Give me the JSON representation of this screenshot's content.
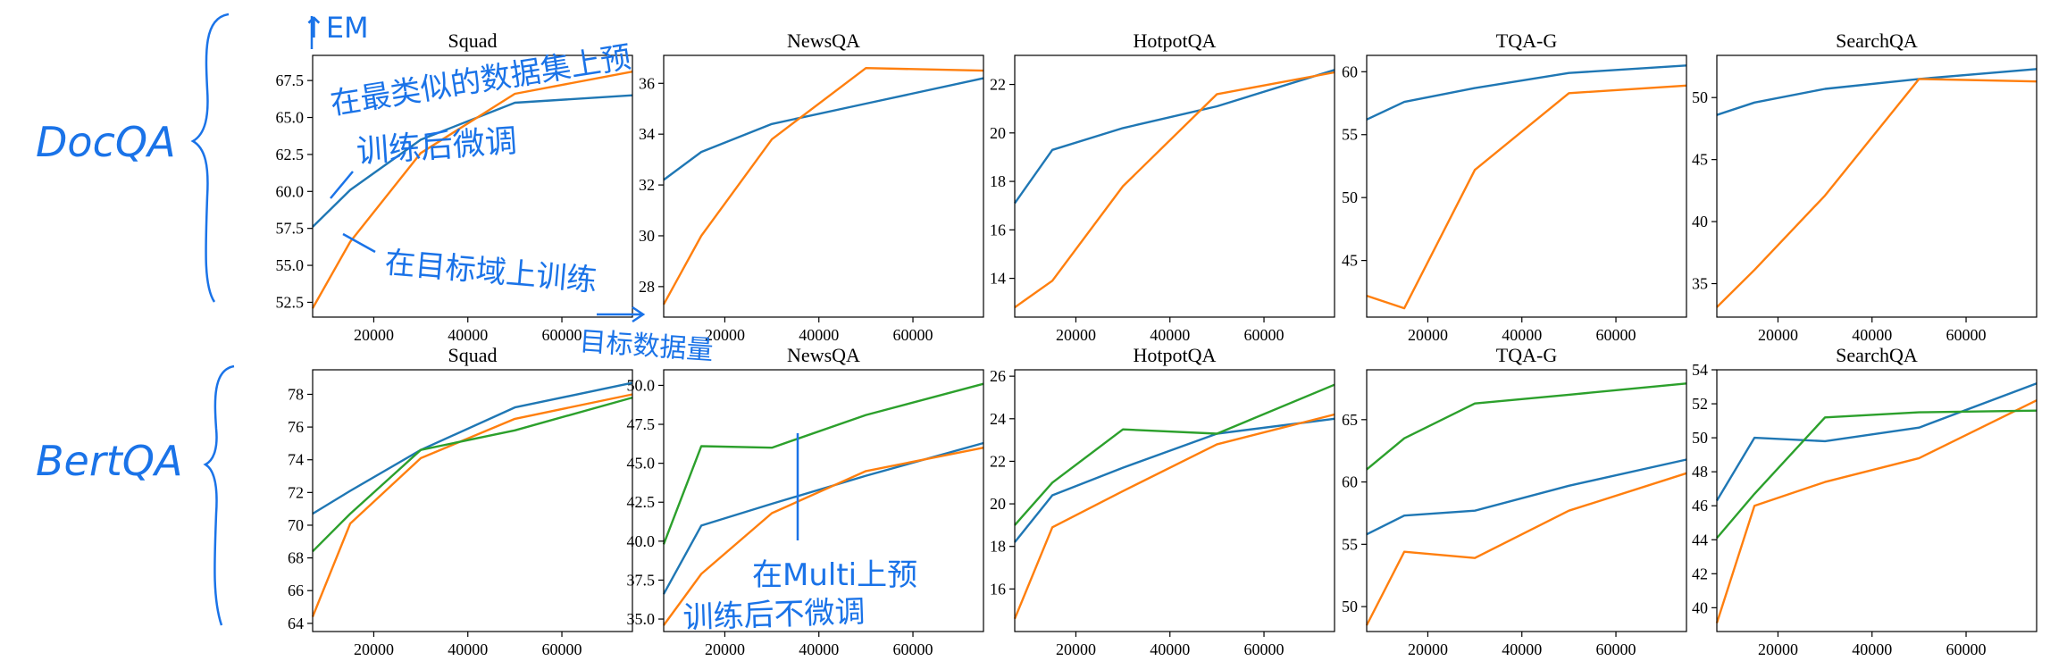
{
  "palette": {
    "blue": "#1f77b4",
    "orange": "#ff7f0e",
    "green": "#2ca02c",
    "ink": "#1a73e8"
  },
  "annotations": {
    "row1_label": "DocQA",
    "row2_label": "BertQA",
    "em_label": "↑EM",
    "pretrain_note_1": "在最类似的数据集上预",
    "pretrain_note_2": "训练后微调",
    "target_note": "在目标域上训练",
    "target_data_note": "目标数据量",
    "multi_note_1": "在Multi上预",
    "multi_note_2": "训练后不微调"
  },
  "chart_data": [
    {
      "type": "line",
      "title": "Squad",
      "xlim": [
        7000,
        75000
      ],
      "ylim": [
        51.5,
        69.2
      ],
      "xticks": [
        20000,
        40000,
        60000
      ],
      "yticks": [
        52.5,
        55.0,
        57.5,
        60.0,
        62.5,
        65.0,
        67.5
      ],
      "series": [
        {
          "color": "blue",
          "x": [
            7000,
            15000,
            30000,
            50000,
            75000
          ],
          "y": [
            57.6,
            60.1,
            63.5,
            66.0,
            66.5
          ]
        },
        {
          "color": "orange",
          "x": [
            7000,
            15000,
            30000,
            50000,
            75000
          ],
          "y": [
            52.1,
            56.6,
            62.6,
            66.6,
            68.1
          ]
        }
      ]
    },
    {
      "type": "line",
      "title": "NewsQA",
      "xlim": [
        7000,
        75000
      ],
      "ylim": [
        26.8,
        37.1
      ],
      "xticks": [
        20000,
        40000,
        60000
      ],
      "yticks": [
        28,
        30,
        32,
        34,
        36
      ],
      "series": [
        {
          "color": "blue",
          "x": [
            7000,
            15000,
            30000,
            50000,
            75000
          ],
          "y": [
            32.2,
            33.3,
            34.4,
            35.2,
            36.2
          ]
        },
        {
          "color": "orange",
          "x": [
            7000,
            15000,
            30000,
            50000,
            75000
          ],
          "y": [
            27.3,
            30.0,
            33.8,
            36.6,
            36.5
          ]
        }
      ]
    },
    {
      "type": "line",
      "title": "HotpotQA",
      "xlim": [
        7000,
        75000
      ],
      "ylim": [
        12.4,
        23.2
      ],
      "xticks": [
        20000,
        40000,
        60000
      ],
      "yticks": [
        14,
        16,
        18,
        20,
        22
      ],
      "series": [
        {
          "color": "blue",
          "x": [
            7000,
            15000,
            30000,
            50000,
            75000
          ],
          "y": [
            17.1,
            19.3,
            20.2,
            21.1,
            22.6
          ]
        },
        {
          "color": "orange",
          "x": [
            7000,
            15000,
            30000,
            50000,
            75000
          ],
          "y": [
            12.8,
            13.9,
            17.8,
            21.6,
            22.5
          ]
        }
      ]
    },
    {
      "type": "line",
      "title": "TQA-G",
      "xlim": [
        7000,
        75000
      ],
      "ylim": [
        40.5,
        61.3
      ],
      "xticks": [
        20000,
        40000,
        60000
      ],
      "yticks": [
        45,
        50,
        55,
        60
      ],
      "series": [
        {
          "color": "blue",
          "x": [
            7000,
            15000,
            30000,
            50000,
            75000
          ],
          "y": [
            56.2,
            57.6,
            58.7,
            59.9,
            60.5
          ]
        },
        {
          "color": "orange",
          "x": [
            7000,
            15000,
            30000,
            50000,
            75000
          ],
          "y": [
            42.2,
            41.2,
            52.2,
            58.3,
            58.9
          ]
        }
      ]
    },
    {
      "type": "line",
      "title": "SearchQA",
      "xlim": [
        7000,
        75000
      ],
      "ylim": [
        32.3,
        53.4
      ],
      "xticks": [
        20000,
        40000,
        60000
      ],
      "yticks": [
        35,
        40,
        45,
        50
      ],
      "series": [
        {
          "color": "blue",
          "x": [
            7000,
            15000,
            30000,
            50000,
            75000
          ],
          "y": [
            48.6,
            49.6,
            50.7,
            51.5,
            52.3
          ]
        },
        {
          "color": "orange",
          "x": [
            7000,
            15000,
            30000,
            50000,
            75000
          ],
          "y": [
            33.1,
            36.1,
            42.1,
            51.5,
            51.3
          ]
        }
      ]
    },
    {
      "type": "line",
      "title": "Squad",
      "xlim": [
        7000,
        75000
      ],
      "ylim": [
        63.5,
        79.5
      ],
      "xticks": [
        20000,
        40000,
        60000
      ],
      "yticks": [
        64,
        66,
        68,
        70,
        72,
        74,
        76,
        78
      ],
      "series": [
        {
          "color": "blue",
          "x": [
            7000,
            15000,
            30000,
            50000,
            75000
          ],
          "y": [
            70.7,
            72.1,
            74.6,
            77.2,
            78.7
          ]
        },
        {
          "color": "orange",
          "x": [
            7000,
            15000,
            30000,
            50000,
            75000
          ],
          "y": [
            64.4,
            70.1,
            74.1,
            76.5,
            78.0
          ]
        },
        {
          "color": "green",
          "x": [
            7000,
            15000,
            30000,
            50000,
            75000
          ],
          "y": [
            68.4,
            70.7,
            74.6,
            75.8,
            77.8
          ]
        }
      ]
    },
    {
      "type": "line",
      "title": "NewsQA",
      "xlim": [
        7000,
        75000
      ],
      "ylim": [
        34.2,
        51.0
      ],
      "xticks": [
        20000,
        40000,
        60000
      ],
      "yticks": [
        35.0,
        37.5,
        40.0,
        42.5,
        45.0,
        47.5,
        50.0
      ],
      "series": [
        {
          "color": "blue",
          "x": [
            7000,
            15000,
            30000,
            50000,
            75000
          ],
          "y": [
            36.6,
            41.0,
            42.4,
            44.2,
            46.3
          ]
        },
        {
          "color": "orange",
          "x": [
            7000,
            15000,
            30000,
            50000,
            75000
          ],
          "y": [
            34.6,
            37.9,
            41.8,
            44.5,
            46.0
          ]
        },
        {
          "color": "green",
          "x": [
            7000,
            15000,
            30000,
            50000,
            75000
          ],
          "y": [
            39.8,
            46.1,
            46.0,
            48.1,
            50.1
          ]
        }
      ]
    },
    {
      "type": "line",
      "title": "HotpotQA",
      "xlim": [
        7000,
        75000
      ],
      "ylim": [
        14.0,
        26.3
      ],
      "xticks": [
        20000,
        40000,
        60000
      ],
      "yticks": [
        16,
        18,
        20,
        22,
        24,
        26
      ],
      "series": [
        {
          "color": "blue",
          "x": [
            7000,
            15000,
            30000,
            50000,
            75000
          ],
          "y": [
            18.2,
            20.4,
            21.7,
            23.3,
            24.0
          ]
        },
        {
          "color": "orange",
          "x": [
            7000,
            15000,
            30000,
            50000,
            75000
          ],
          "y": [
            14.6,
            18.9,
            20.6,
            22.8,
            24.2
          ]
        },
        {
          "color": "green",
          "x": [
            7000,
            15000,
            30000,
            50000,
            75000
          ],
          "y": [
            19.0,
            21.0,
            23.5,
            23.3,
            25.6
          ]
        }
      ]
    },
    {
      "type": "line",
      "title": "TQA-G",
      "xlim": [
        7000,
        75000
      ],
      "ylim": [
        48.0,
        69.0
      ],
      "xticks": [
        20000,
        40000,
        60000
      ],
      "yticks": [
        50,
        55,
        60,
        65
      ],
      "series": [
        {
          "color": "blue",
          "x": [
            7000,
            15000,
            30000,
            50000,
            75000
          ],
          "y": [
            55.8,
            57.3,
            57.7,
            59.7,
            61.8
          ]
        },
        {
          "color": "orange",
          "x": [
            7000,
            15000,
            30000,
            50000,
            75000
          ],
          "y": [
            48.5,
            54.4,
            53.9,
            57.7,
            60.7
          ]
        },
        {
          "color": "green",
          "x": [
            7000,
            15000,
            30000,
            50000,
            75000
          ],
          "y": [
            61.0,
            63.5,
            66.3,
            67.0,
            67.9
          ]
        }
      ]
    },
    {
      "type": "line",
      "title": "SearchQA",
      "xlim": [
        7000,
        75000
      ],
      "ylim": [
        38.6,
        54.0
      ],
      "xticks": [
        20000,
        40000,
        60000
      ],
      "yticks": [
        40,
        42,
        44,
        46,
        48,
        50,
        52,
        54
      ],
      "series": [
        {
          "color": "blue",
          "x": [
            7000,
            15000,
            30000,
            50000,
            75000
          ],
          "y": [
            46.3,
            50.0,
            49.8,
            50.6,
            53.2
          ]
        },
        {
          "color": "orange",
          "x": [
            7000,
            15000,
            30000,
            50000,
            75000
          ],
          "y": [
            39.1,
            46.0,
            47.4,
            48.8,
            52.2
          ]
        },
        {
          "color": "green",
          "x": [
            7000,
            15000,
            30000,
            50000,
            75000
          ],
          "y": [
            44.1,
            46.7,
            51.2,
            51.5,
            51.6
          ]
        }
      ]
    }
  ]
}
